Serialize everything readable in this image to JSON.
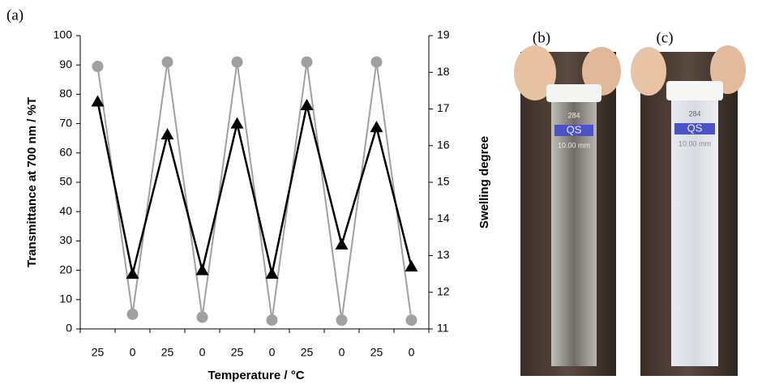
{
  "panel_label": "(a)",
  "chart_data": {
    "type": "line",
    "categories": [
      "25",
      "0",
      "25",
      "0",
      "25",
      "0",
      "25",
      "0",
      "25",
      "0"
    ],
    "series": [
      {
        "color": "#a0a0a0",
        "marker": "circle",
        "values": [
          89.5,
          5,
          91,
          4,
          91,
          3,
          91,
          3,
          91,
          3
        ]
      },
      {
        "color": "#000000",
        "marker": "triangle",
        "axis": "y2",
        "values": [
          17.2,
          12.5,
          16.3,
          12.6,
          16.6,
          12.5,
          17.1,
          13.3,
          16.5,
          12.7
        ]
      }
    ],
    "xlabel": "Temperature / °C",
    "ylabel": "Transmittance at 700 nm / %T",
    "y2label": "Swelling degree",
    "ylim": [
      0,
      100
    ],
    "yticks": [
      0,
      10,
      20,
      30,
      40,
      50,
      60,
      70,
      80,
      90,
      100
    ],
    "y2lim": [
      11,
      19
    ],
    "y2ticks": [
      11,
      12,
      13,
      14,
      15,
      16,
      17,
      18,
      19
    ]
  },
  "photos": [
    {
      "label": "(b)",
      "cuvette_text": [
        "284",
        "QS",
        "10.00 mm"
      ]
    },
    {
      "label": "(c)",
      "cuvette_text": [
        "284",
        "QS",
        "10.00 mm"
      ]
    }
  ]
}
